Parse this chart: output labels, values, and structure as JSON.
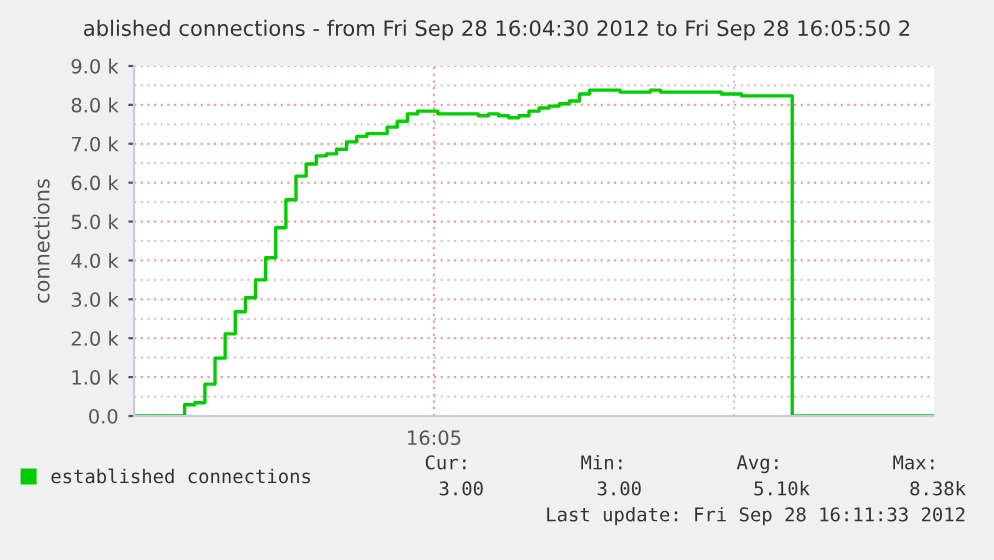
{
  "chart_data": {
    "type": "step",
    "title": "ablished connections - from Fri Sep 28 16:04:30 2012 to Fri Sep 28 16:05:50 2",
    "ylabel": "connections",
    "categories": [
      null,
      null,
      null,
      null,
      null,
      null,
      null,
      null,
      null,
      null,
      null,
      null,
      null,
      null,
      null,
      null,
      null,
      null,
      null,
      null,
      null,
      null,
      null,
      null,
      null,
      null,
      null,
      null,
      null,
      null,
      null,
      null,
      null,
      null,
      null,
      null,
      null,
      null,
      null,
      null,
      null,
      null,
      null,
      null,
      null,
      null,
      null,
      null,
      null,
      null,
      null,
      null,
      null,
      null,
      null,
      null,
      null,
      null,
      null,
      null,
      null,
      null,
      null,
      null,
      null,
      null,
      null,
      null,
      null,
      null,
      null,
      null,
      null,
      null,
      null,
      null,
      null,
      null,
      null,
      null
    ],
    "series": [
      {
        "name": "established connections",
        "color": "#00cc00",
        "values": [
          0,
          0,
          0,
          0,
          0,
          290,
          340,
          820,
          1490,
          2110,
          2680,
          3040,
          3500,
          4070,
          4840,
          5560,
          6170,
          6480,
          6690,
          6740,
          6860,
          7050,
          7190,
          7260,
          7260,
          7430,
          7580,
          7770,
          7840,
          7840,
          7770,
          7770,
          7770,
          7770,
          7720,
          7770,
          7720,
          7670,
          7720,
          7840,
          7920,
          7970,
          8030,
          8100,
          8280,
          8380,
          8380,
          8380,
          8330,
          8330,
          8330,
          8380,
          8330,
          8330,
          8330,
          8330,
          8330,
          8330,
          8280,
          8280,
          8230,
          8230,
          8230,
          8230,
          8230,
          0,
          0,
          0,
          0,
          0,
          0,
          0,
          0,
          0,
          0,
          0,
          0,
          0,
          0,
          0
        ]
      }
    ],
    "ylim": [
      0,
      9000
    ],
    "yticks": [
      {
        "value": 0,
        "label": "0.0"
      },
      {
        "value": 1000,
        "label": "1.0 k"
      },
      {
        "value": 2000,
        "label": "2.0 k"
      },
      {
        "value": 3000,
        "label": "3.0 k"
      },
      {
        "value": 4000,
        "label": "4.0 k"
      },
      {
        "value": 5000,
        "label": "5.0 k"
      },
      {
        "value": 6000,
        "label": "6.0 k"
      },
      {
        "value": 7000,
        "label": "7.0 k"
      },
      {
        "value": 8000,
        "label": "8.0 k"
      },
      {
        "value": 9000,
        "label": "9.0 k"
      }
    ],
    "grid": true,
    "legend": "bottom",
    "annotations": [
      "16:05",
      "Cur:",
      "Min:",
      "Avg:",
      "Max:",
      "3.00",
      "3.00",
      "5.10k",
      "8.38k",
      "Last update: Fri Sep 28 16:11:33 2012"
    ]
  }
}
